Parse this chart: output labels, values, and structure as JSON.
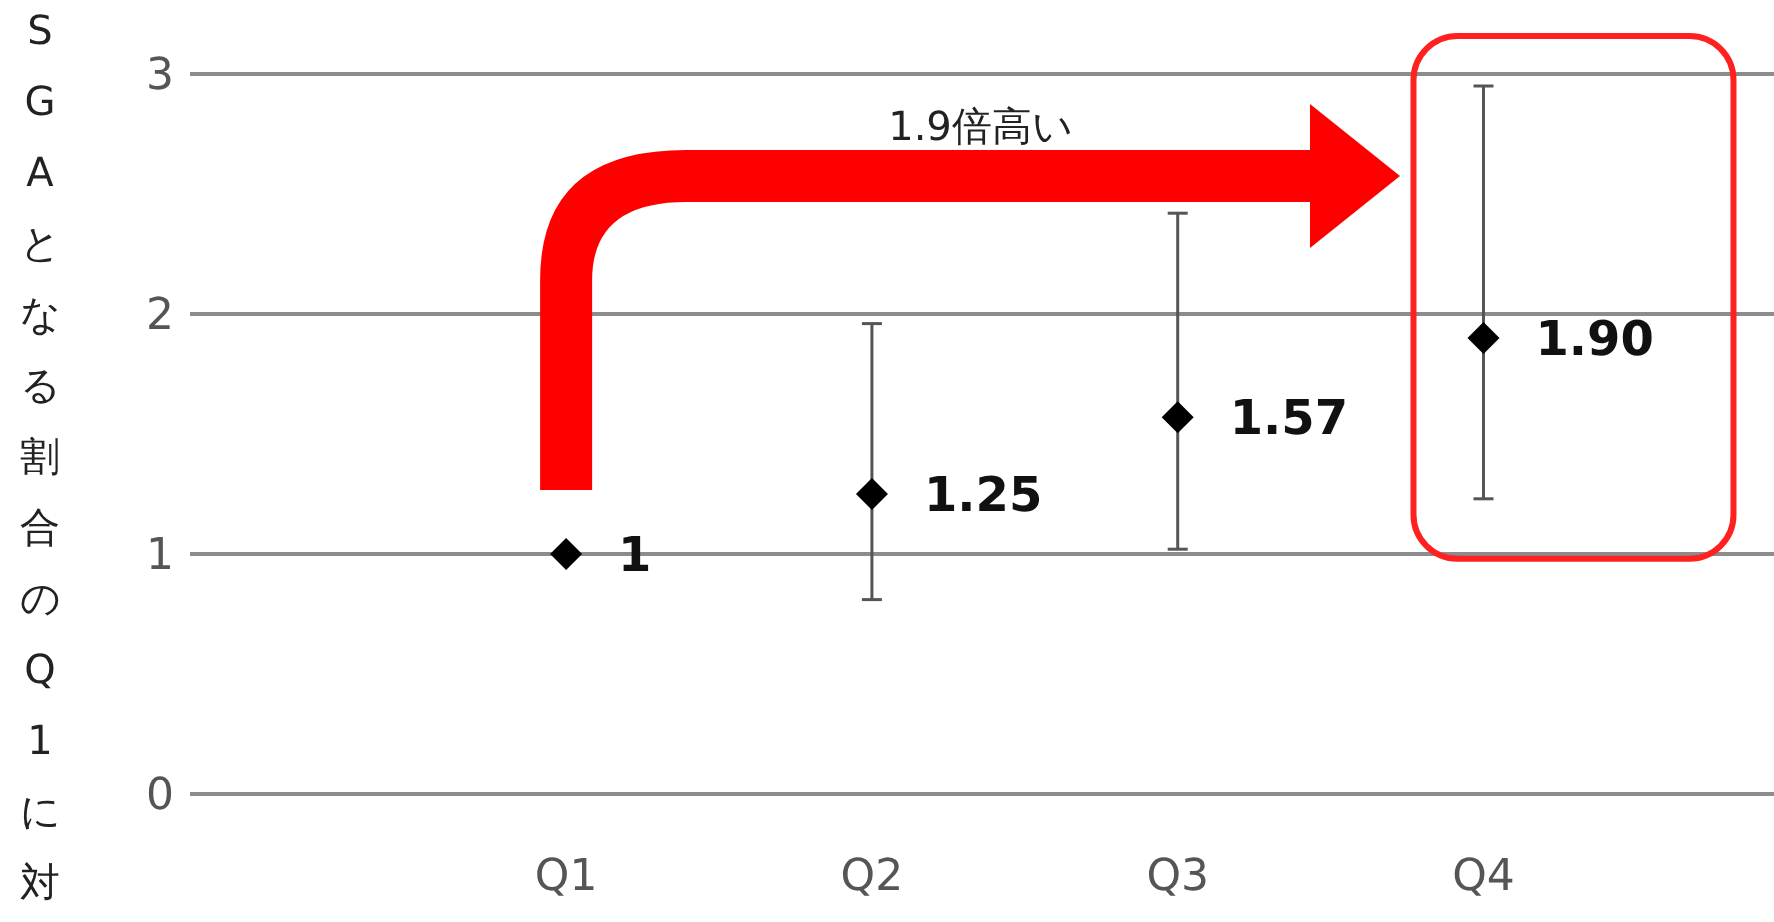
{
  "chart_data": {
    "type": "scatter",
    "ylabel": "SGAとなる割合のQ1に対す",
    "categories": [
      "Q1",
      "Q2",
      "Q3",
      "Q4"
    ],
    "series": [
      {
        "color": "#000000",
        "values": [
          1,
          1.25,
          1.57,
          1.9
        ],
        "errors": [
          null,
          [
            0.81,
            1.96
          ],
          [
            1.02,
            2.42
          ],
          [
            1.23,
            2.95
          ]
        ],
        "value_labels": [
          "1",
          "1.25",
          "1.57",
          "1.90"
        ]
      }
    ],
    "ylim": [
      0,
      3
    ],
    "yticks": [
      0,
      1,
      2,
      3
    ],
    "grid": "y",
    "marker": "diamond",
    "annotations": [
      "1.9倍高い"
    ]
  }
}
